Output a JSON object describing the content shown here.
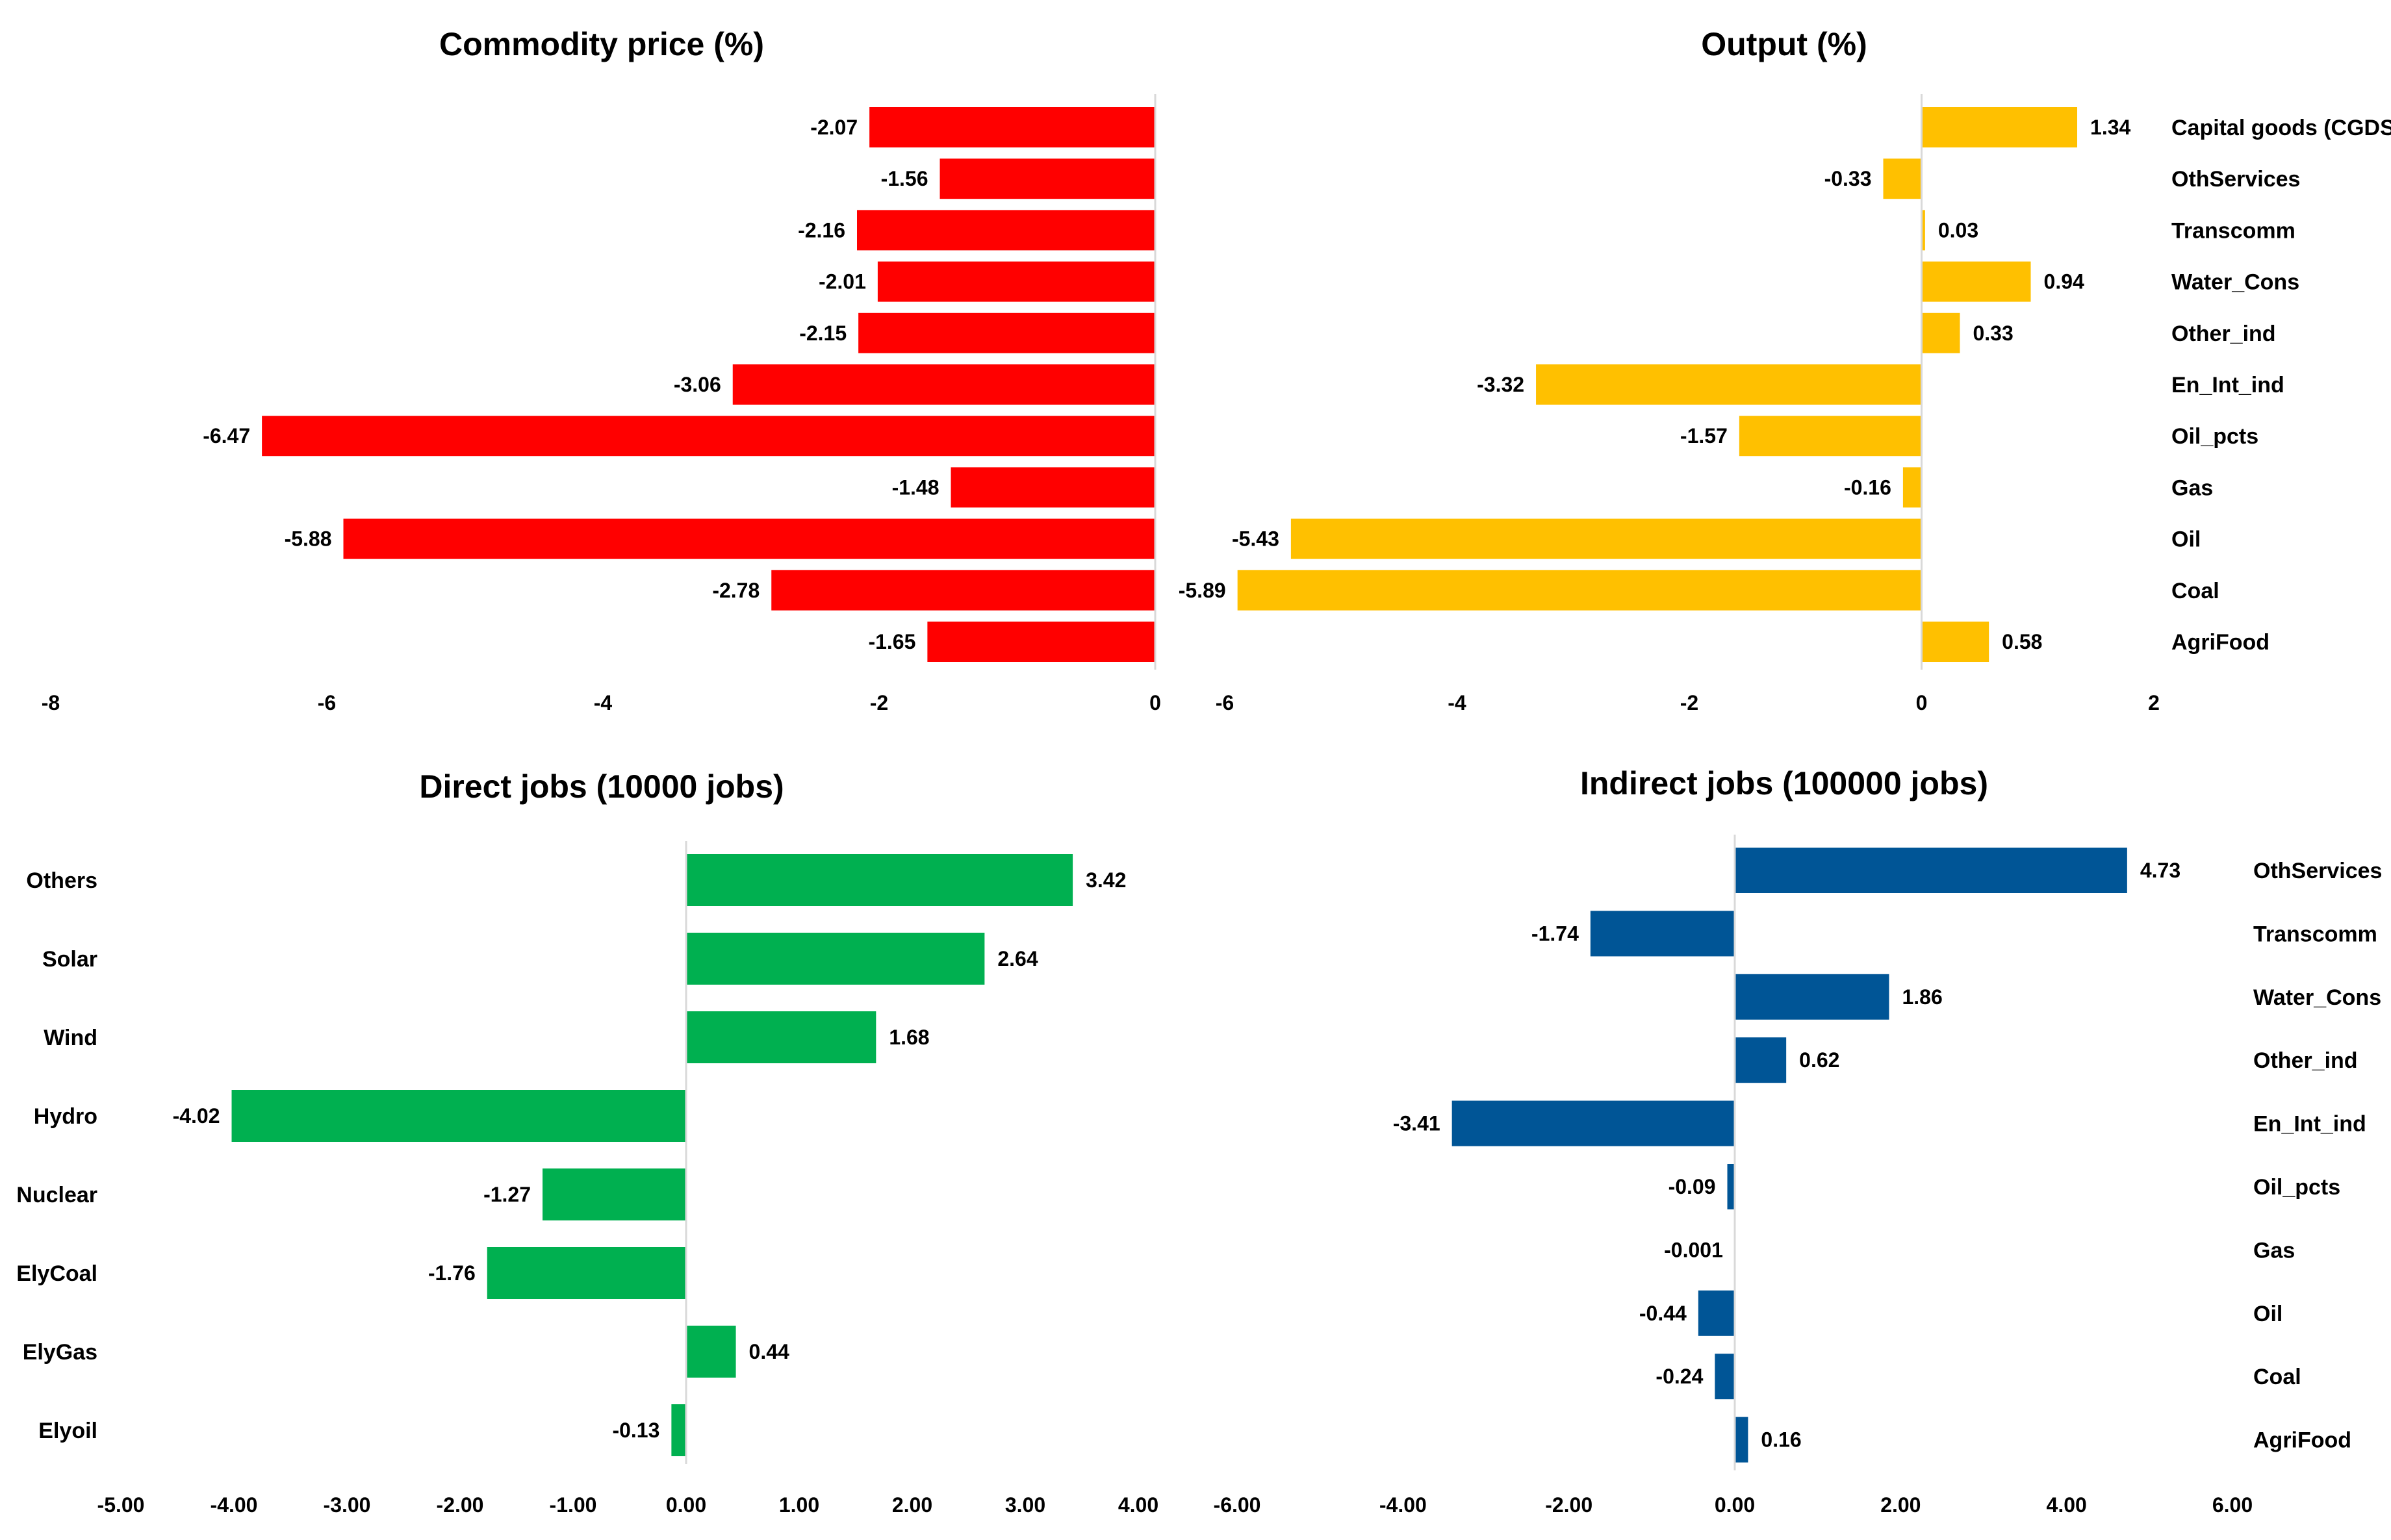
{
  "chart_data": [
    {
      "id": "commodity",
      "type": "bar",
      "orientation": "horizontal",
      "title": "Commodity price (%)",
      "color": "#ff0000",
      "categories": [
        "Capital goods (CGDS)",
        "OthServices",
        "Transcomm",
        "Water_Cons",
        "Other_ind",
        "En_Int_ind",
        "Oil_pcts",
        "Gas",
        "Oil",
        "Coal",
        "AgriFood"
      ],
      "values": [
        -2.07,
        -1.56,
        -2.16,
        -2.01,
        -2.15,
        -3.06,
        -6.47,
        -1.48,
        -5.88,
        -2.78,
        -1.65
      ],
      "value_labels": [
        "-2.07",
        "-1.56",
        "-2.16",
        "-2.01",
        "-2.15",
        "-3.06",
        "-6.47",
        "-1.48",
        "-5.88",
        "-2.78",
        "-1.65"
      ],
      "show_categories": false,
      "xlim": [
        -8,
        0
      ],
      "ticks": [
        -8,
        -6,
        -4,
        -2,
        0
      ],
      "tick_labels": [
        "-8",
        "-6",
        "-4",
        "-2",
        "0"
      ]
    },
    {
      "id": "output",
      "type": "bar",
      "orientation": "horizontal",
      "title": "Output (%)",
      "color": "#ffc000",
      "categories": [
        "Capital goods (CGDS)",
        "OthServices",
        "Transcomm",
        "Water_Cons",
        "Other_ind",
        "En_Int_ind",
        "Oil_pcts",
        "Gas",
        "Oil",
        "Coal",
        "AgriFood"
      ],
      "values": [
        1.34,
        -0.33,
        0.03,
        0.94,
        0.33,
        -3.32,
        -1.57,
        -0.16,
        -5.43,
        -5.89,
        0.58
      ],
      "value_labels": [
        "1.34",
        "-0.33",
        "0.03",
        "0.94",
        "0.33",
        "-3.32",
        "-1.57",
        "-0.16",
        "-5.43",
        "-5.89",
        "0.58"
      ],
      "show_categories": true,
      "category_side": "right",
      "xlim": [
        -6,
        2
      ],
      "ticks": [
        -6,
        -4,
        -2,
        0,
        2
      ],
      "tick_labels": [
        "-6",
        "-4",
        "-2",
        "0",
        "2"
      ]
    },
    {
      "id": "direct",
      "type": "bar",
      "orientation": "horizontal",
      "title": "Direct jobs (10000 jobs)",
      "color": "#00b050",
      "categories": [
        "Others",
        "Solar",
        "Wind",
        "Hydro",
        "Nuclear",
        "ElyCoal",
        "ElyGas",
        "Elyoil"
      ],
      "values": [
        3.42,
        2.64,
        1.68,
        -4.02,
        -1.27,
        -1.76,
        0.44,
        -0.13
      ],
      "value_labels": [
        "3.42",
        "2.64",
        "1.68",
        "-4.02",
        "-1.27",
        "-1.76",
        "0.44",
        "-0.13"
      ],
      "show_categories": true,
      "category_side": "left",
      "xlim": [
        -5,
        4
      ],
      "ticks": [
        -5,
        -4,
        -3,
        -2,
        -1,
        0,
        1,
        2,
        3,
        4
      ],
      "tick_labels": [
        "-5.00",
        "-4.00",
        "-3.00",
        "-2.00",
        "-1.00",
        "0.00",
        "1.00",
        "2.00",
        "3.00",
        "4.00"
      ]
    },
    {
      "id": "indirect",
      "type": "bar",
      "orientation": "horizontal",
      "title": "Indirect jobs (100000 jobs)",
      "color": "#005596",
      "categories": [
        "OthServices",
        "Transcomm",
        "Water_Cons",
        "Other_ind",
        "En_Int_ind",
        "Oil_pcts",
        "Gas",
        "Oil",
        "Coal",
        "AgriFood"
      ],
      "values": [
        4.73,
        -1.74,
        1.86,
        0.62,
        -3.41,
        -0.09,
        -0.001,
        -0.44,
        -0.24,
        0.16
      ],
      "value_labels": [
        "4.73",
        "-1.74",
        "1.86",
        "0.62",
        "-3.41",
        "-0.09",
        "-0.001",
        "-0.44",
        "-0.24",
        "0.16"
      ],
      "show_categories": true,
      "category_side": "right",
      "xlim": [
        -6,
        6
      ],
      "ticks": [
        -6,
        -4,
        -2,
        0,
        2,
        4,
        6
      ],
      "tick_labels": [
        "-6.00",
        "-4.00",
        "-2.00",
        "0.00",
        "2.00",
        "4.00",
        "6.00"
      ]
    }
  ]
}
